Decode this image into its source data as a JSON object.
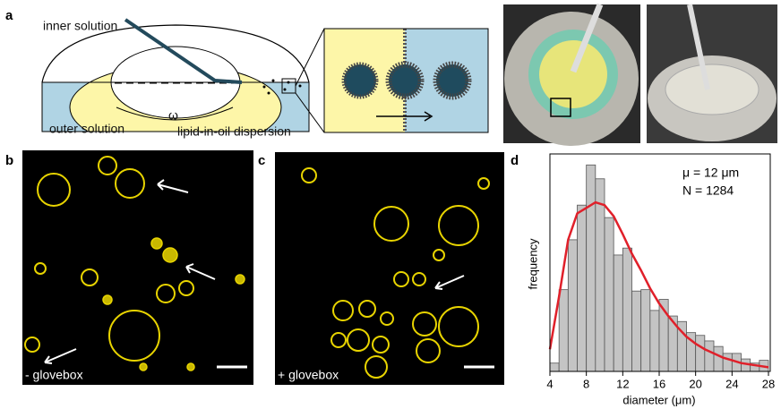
{
  "panel_labels": [
    "a",
    "b",
    "c",
    "d"
  ],
  "schematic": {
    "inner_solution": "inner solution",
    "outer_solution": "outer solution",
    "omega": "ω",
    "dispersion": "lipid-in-oil dispersion"
  },
  "micrographs": [
    {
      "caption": "- glovebox"
    },
    {
      "caption": "+ glovebox"
    }
  ],
  "chart_data": {
    "type": "histogram",
    "xlabel": "diameter (μm)",
    "ylabel": "frequency",
    "annotations": [
      "μ = 12 μm",
      "N = 1284"
    ],
    "bins": [
      4,
      5,
      6,
      7,
      8,
      9,
      10,
      11,
      12,
      13,
      14,
      15,
      16,
      17,
      18,
      19,
      20,
      21,
      22,
      23,
      24,
      25,
      26,
      27,
      28
    ],
    "values": [
      6,
      59,
      95,
      120,
      149,
      139,
      111,
      84,
      89,
      58,
      59,
      44,
      52,
      40,
      36,
      28,
      26,
      22,
      18,
      13,
      13,
      9,
      6,
      8
    ],
    "color": "#c4c4c4",
    "fit": {
      "color": "#e0202a",
      "x": [
        4,
        5,
        6,
        7,
        8,
        9,
        10,
        11,
        12,
        13,
        14,
        15,
        16,
        17,
        18,
        19,
        20,
        21,
        22,
        23,
        24,
        25,
        26,
        27,
        28
      ],
      "values": [
        16,
        54,
        95,
        114,
        118,
        122,
        120,
        112,
        99,
        85,
        73,
        60,
        49,
        40,
        32,
        25,
        20,
        16,
        13,
        10,
        8,
        6,
        5,
        4,
        3
      ]
    },
    "xlim": [
      4,
      28
    ],
    "ylim": [
      0,
      155
    ],
    "xticks": [
      4,
      8,
      12,
      16,
      20,
      24,
      28
    ]
  }
}
